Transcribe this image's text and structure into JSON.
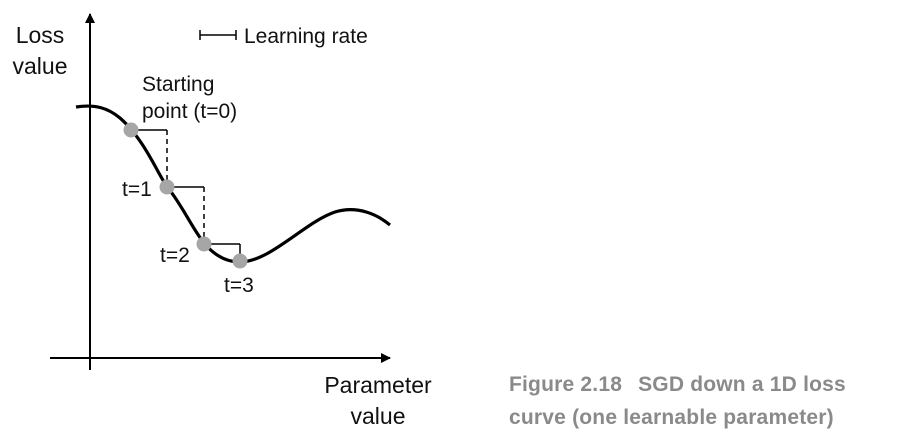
{
  "axes": {
    "y_label_line1": "Loss",
    "y_label_line2": "value",
    "x_label_line1": "Parameter",
    "x_label_line2": "value"
  },
  "legend": {
    "learning_rate_label": "Learning rate"
  },
  "annotations": {
    "start_line1": "Starting",
    "start_line2": "point (t=0)",
    "t1": "t=1",
    "t2": "t=2",
    "t3": "t=3"
  },
  "caption": {
    "number": "Figure 2.18",
    "line1": "SGD down a 1D loss",
    "line2": "curve (one learnable parameter)"
  },
  "colors": {
    "curve": "#000000",
    "points": "#a6a6a6",
    "caption": "#8a8a8a"
  }
}
